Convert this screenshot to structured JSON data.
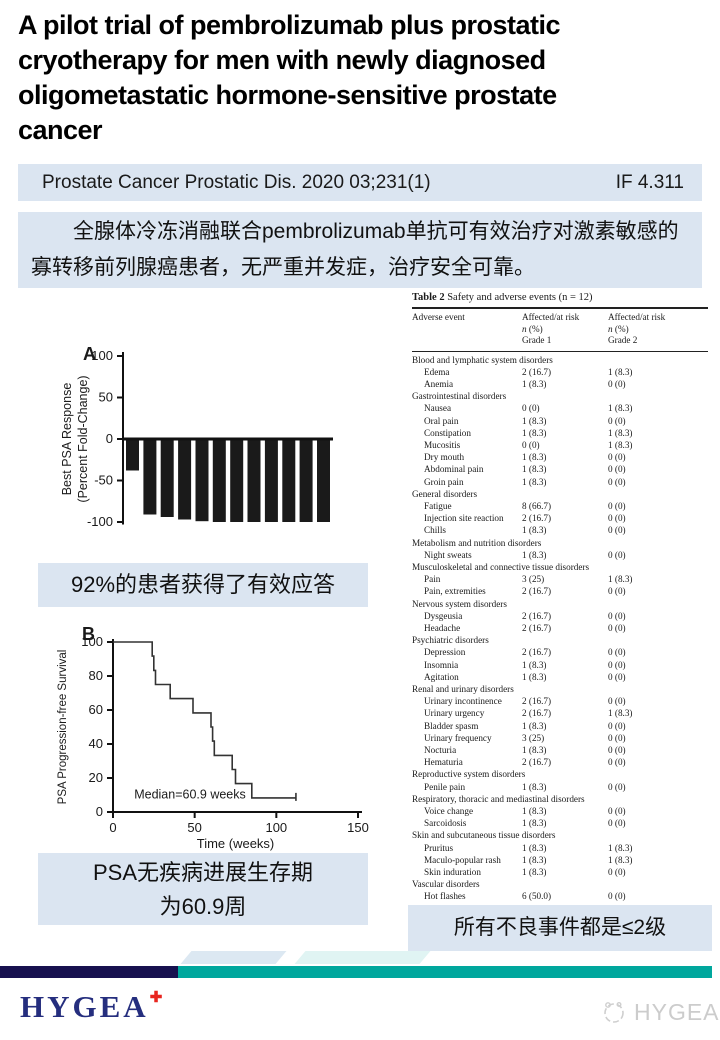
{
  "page": {
    "title_lines": [
      "A pilot trial of pembrolizumab plus prostatic",
      "cryotherapy for men with newly diagnosed",
      "oligometastatic hormone-sensitive prostate",
      "cancer"
    ]
  },
  "journal_bar": {
    "citation": "Prostate Cancer Prostatic Dis. 2020 03;231(1)",
    "impact_factor": "IF 4.311"
  },
  "summary": {
    "text": "全腺体冷冻消融联合pembrolizumab单抗可有效治疗对激素敏感的寡转移前列腺癌患者，无严重并发症，治疗安全可靠。"
  },
  "captions": {
    "response": "92%的患者获得了有效应答",
    "survival_line1": "PSA无疾病进展生存期",
    "survival_line2": "为60.9周",
    "adverse": "所有不良事件都是≤2级"
  },
  "colors": {
    "highlight_box": "#dbe5f1",
    "footer_navy": "#17114f",
    "footer_teal": "#00a79d",
    "logo_navy": "#252e7e",
    "logo_red": "#e8251f",
    "watermark_gray": "#cccccc",
    "bar_fill": "#1a1a1a"
  },
  "chart_data": [
    {
      "type": "bar",
      "panel_label": "A",
      "ylabel_line1": "Best PSA Response",
      "ylabel_line2": "(Percent Fold-Change)",
      "yticks": [
        100,
        50,
        0,
        -50,
        -100
      ],
      "ylim": [
        -103,
        100
      ],
      "values": [
        -38,
        -91,
        -94,
        -97,
        -99,
        -100,
        -100,
        -100,
        -100,
        -100,
        -100,
        -100
      ],
      "bar_color": "#1a1a1a"
    },
    {
      "type": "line",
      "panel_label": "B",
      "ylabel": "PSA Progression-free Survival",
      "xlabel": "Time (weeks)",
      "xticks": [
        0,
        50,
        100,
        150
      ],
      "yticks": [
        0,
        20,
        40,
        60,
        80,
        100
      ],
      "xlim": [
        0,
        150
      ],
      "ylim": [
        0,
        100
      ],
      "annotation": "Median=60.9 weeks",
      "steps": [
        [
          0,
          100
        ],
        [
          24,
          100
        ],
        [
          24,
          91.7
        ],
        [
          25,
          91.7
        ],
        [
          25,
          83.3
        ],
        [
          26,
          83.3
        ],
        [
          26,
          75
        ],
        [
          35,
          75
        ],
        [
          35,
          66.7
        ],
        [
          49,
          66.7
        ],
        [
          49,
          58.3
        ],
        [
          60,
          58.3
        ],
        [
          60,
          50
        ],
        [
          61,
          50
        ],
        [
          61,
          41.7
        ],
        [
          62,
          41.7
        ],
        [
          62,
          33.3
        ],
        [
          73,
          33.3
        ],
        [
          73,
          25
        ],
        [
          75,
          25
        ],
        [
          75,
          16.7
        ],
        [
          85,
          16.7
        ],
        [
          85,
          8.3
        ],
        [
          112,
          8.3
        ]
      ],
      "censor_at_end": true
    }
  ],
  "table": {
    "title_bold": "Table 2",
    "title_rest": " Safety and adverse events (n = 12)",
    "col1_header": "Adverse event",
    "col2_header": [
      "Affected/at risk",
      "n (%)",
      "Grade 1"
    ],
    "col3_header": [
      "Affected/at risk",
      "n (%)",
      "Grade 2"
    ],
    "rows": [
      {
        "type": "category",
        "label": "Blood and lymphatic system disorders"
      },
      {
        "type": "item",
        "label": "Edema",
        "g1": "2 (16.7)",
        "g2": "1 (8.3)"
      },
      {
        "type": "item",
        "label": "Anemia",
        "g1": "1 (8.3)",
        "g2": "0 (0)"
      },
      {
        "type": "category",
        "label": "Gastrointestinal disorders"
      },
      {
        "type": "item",
        "label": "Nausea",
        "g1": "0 (0)",
        "g2": "1 (8.3)"
      },
      {
        "type": "item",
        "label": "Oral pain",
        "g1": "1 (8.3)",
        "g2": "0 (0)"
      },
      {
        "type": "item",
        "label": "Constipation",
        "g1": "1 (8.3)",
        "g2": "1 (8.3)"
      },
      {
        "type": "item",
        "label": "Mucositis",
        "g1": "0 (0)",
        "g2": "1 (8.3)"
      },
      {
        "type": "item",
        "label": "Dry mouth",
        "g1": "1 (8.3)",
        "g2": "0 (0)"
      },
      {
        "type": "item",
        "label": "Abdominal pain",
        "g1": "1 (8.3)",
        "g2": "0 (0)"
      },
      {
        "type": "item",
        "label": "Groin pain",
        "g1": "1 (8.3)",
        "g2": "0 (0)"
      },
      {
        "type": "category",
        "label": "General disorders"
      },
      {
        "type": "item",
        "label": "Fatigue",
        "g1": "8 (66.7)",
        "g2": "0 (0)"
      },
      {
        "type": "item",
        "label": "Injection site reaction",
        "g1": "2 (16.7)",
        "g2": "0 (0)"
      },
      {
        "type": "item",
        "label": "Chills",
        "g1": "1 (8.3)",
        "g2": "0 (0)"
      },
      {
        "type": "category",
        "label": "Metabolism and nutrition disorders"
      },
      {
        "type": "item",
        "label": "Night sweats",
        "g1": "1 (8.3)",
        "g2": "0 (0)"
      },
      {
        "type": "category",
        "label": "Musculoskeletal and connective tissue disorders"
      },
      {
        "type": "item",
        "label": "Pain",
        "g1": "3 (25)",
        "g2": "1 (8.3)"
      },
      {
        "type": "item",
        "label": "Pain, extremities",
        "g1": "2 (16.7)",
        "g2": "0 (0)"
      },
      {
        "type": "category",
        "label": "Nervous system disorders"
      },
      {
        "type": "item",
        "label": "Dysgeusia",
        "g1": "2 (16.7)",
        "g2": "0 (0)"
      },
      {
        "type": "item",
        "label": "Headache",
        "g1": "2 (16.7)",
        "g2": "0 (0)"
      },
      {
        "type": "category",
        "label": "Psychiatric disorders"
      },
      {
        "type": "item",
        "label": "Depression",
        "g1": "2 (16.7)",
        "g2": "0 (0)"
      },
      {
        "type": "item",
        "label": "Insomnia",
        "g1": "1 (8.3)",
        "g2": "0 (0)"
      },
      {
        "type": "item",
        "label": "Agitation",
        "g1": "1 (8.3)",
        "g2": "0 (0)"
      },
      {
        "type": "category",
        "label": "Renal and urinary disorders"
      },
      {
        "type": "item",
        "label": "Urinary incontinence",
        "g1": "2 (16.7)",
        "g2": "0 (0)"
      },
      {
        "type": "item",
        "label": "Urinary urgency",
        "g1": "2 (16.7)",
        "g2": "1 (8.3)"
      },
      {
        "type": "item",
        "label": "Bladder spasm",
        "g1": "1 (8.3)",
        "g2": "0 (0)"
      },
      {
        "type": "item",
        "label": "Urinary frequency",
        "g1": "3 (25)",
        "g2": "0 (0)"
      },
      {
        "type": "item",
        "label": "Nocturia",
        "g1": "1 (8.3)",
        "g2": "0 (0)"
      },
      {
        "type": "item",
        "label": "Hematuria",
        "g1": "2 (16.7)",
        "g2": "0 (0)"
      },
      {
        "type": "category",
        "label": "Reproductive system disorders"
      },
      {
        "type": "item",
        "label": "Penile pain",
        "g1": "1 (8.3)",
        "g2": "0 (0)"
      },
      {
        "type": "category",
        "label": "Respiratory, thoracic and mediastinal disorders"
      },
      {
        "type": "item",
        "label": "Voice change",
        "g1": "1 (8.3)",
        "g2": "0 (0)"
      },
      {
        "type": "item",
        "label": "Sarcoidosis",
        "g1": "1 (8.3)",
        "g2": "0 (0)"
      },
      {
        "type": "category",
        "label": "Skin and subcutaneous tissue disorders"
      },
      {
        "type": "item",
        "label": "Pruritus",
        "g1": "1 (8.3)",
        "g2": "1 (8.3)"
      },
      {
        "type": "item",
        "label": "Maculo-popular rash",
        "g1": "1 (8.3)",
        "g2": "1 (8.3)"
      },
      {
        "type": "item",
        "label": "Skin induration",
        "g1": "1 (8.3)",
        "g2": "0 (0)"
      },
      {
        "type": "category",
        "label": "Vascular disorders"
      },
      {
        "type": "item",
        "label": "Hot flashes",
        "g1": "6 (50.0)",
        "g2": "0 (0)"
      }
    ]
  },
  "footer": {
    "logo_text": "HYGEA",
    "logo_plus": "✚",
    "watermark_text": "HYGEA"
  }
}
